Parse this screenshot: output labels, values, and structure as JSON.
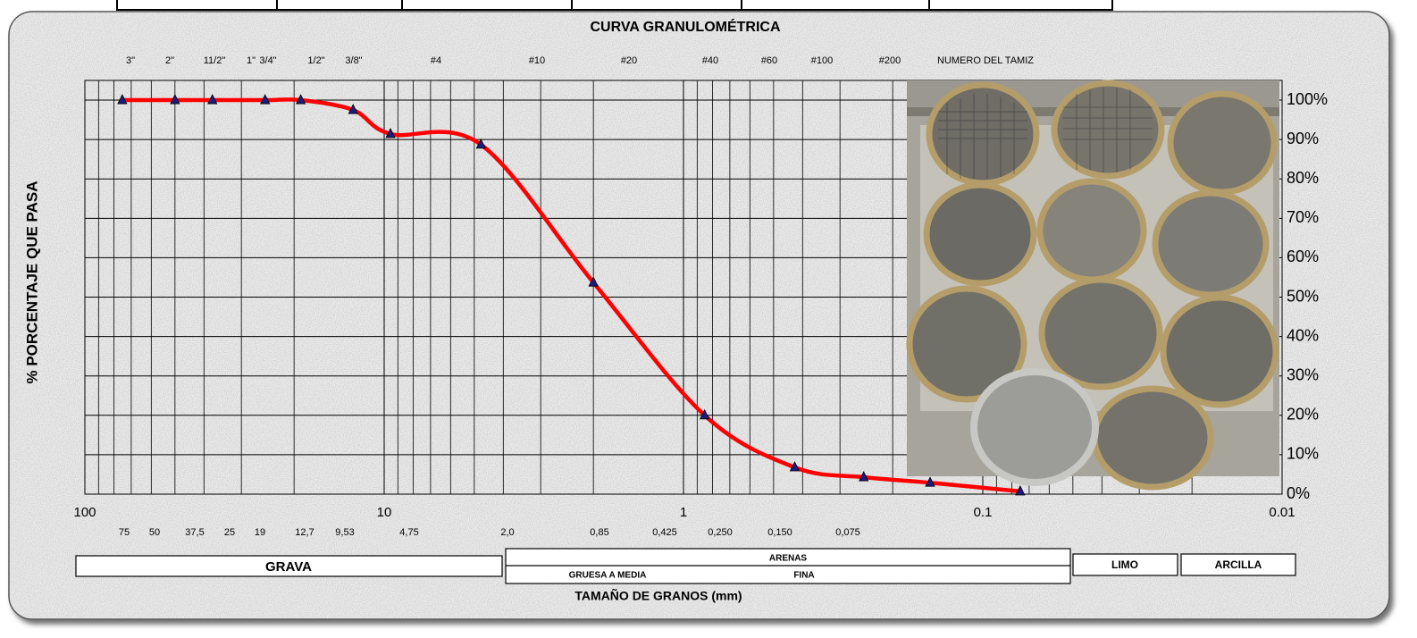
{
  "chart_data": {
    "type": "line",
    "title": "CURVA GRANULOMÉTRICA",
    "x_label": "TAMAÑO DE GRANOS (mm)",
    "y_label": "% PORCENTAJE QUE PASA",
    "x": [
      75,
      50,
      37.5,
      25,
      19,
      12.7,
      9.53,
      4.75,
      2.0,
      0.85,
      0.425,
      0.25,
      0.15,
      0.075
    ],
    "values": [
      100,
      100,
      100,
      100,
      100,
      97.5,
      91.4,
      88.7,
      53.7,
      20,
      6.8,
      4.3,
      2.9,
      0.7
    ],
    "color": "#ff0000",
    "marker_color": "#1c1c80",
    "log_x": true,
    "xlim": [
      100,
      0.01
    ],
    "xticks": [
      100,
      10,
      1,
      0.1,
      0.01
    ],
    "ylim": [
      0,
      105
    ],
    "yticks": [
      {
        "value": 0,
        "label": "0%"
      },
      {
        "value": 10,
        "label": "10%"
      },
      {
        "value": 20,
        "label": "20%"
      },
      {
        "value": 30,
        "label": "30%"
      },
      {
        "value": 40,
        "label": "40%"
      },
      {
        "value": 50,
        "label": "50%"
      },
      {
        "value": 60,
        "label": "60%"
      },
      {
        "value": 70,
        "label": "70%"
      },
      {
        "value": 80,
        "label": "80%"
      },
      {
        "value": 90,
        "label": "90%"
      },
      {
        "value": 100,
        "label": "100%"
      }
    ],
    "grid": true,
    "sieve_labels": [
      "3\"",
      "2\"",
      "11/2\"",
      "1\"",
      "3/4\"",
      "1/2\"",
      "3/8\"",
      "#4",
      "#10",
      "#20",
      "#40",
      "#60",
      "#100",
      "#200",
      "NUMERO DEL TAMIZ"
    ],
    "size_labels": [
      "75",
      "50",
      "37,5",
      "25",
      "19",
      "12,7",
      "9,53",
      "4,75",
      "2,0",
      "0,85",
      "0,425",
      "0,250",
      "0,150",
      "0,075"
    ],
    "soil_classes": {
      "grava": "GRAVA",
      "arenas": "ARENAS",
      "gruesa": "GRUESA A MEDIA",
      "fina": "FINA",
      "limo": "LIMO",
      "arcilla": "ARCILLA"
    }
  }
}
